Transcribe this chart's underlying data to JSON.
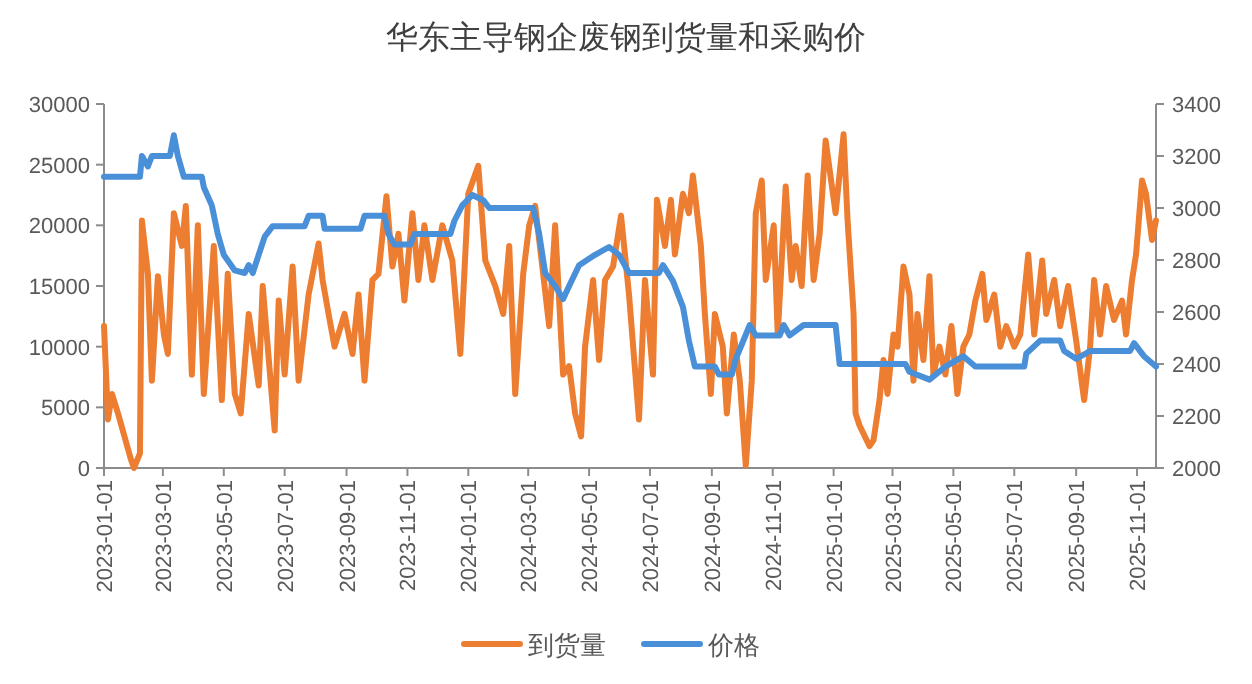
{
  "chart_data": {
    "type": "line",
    "title": "华东主导钢企废钢到货量和采购价",
    "legend": "bottom",
    "xlim": [
      "2023-01-01",
      "2025-11-20"
    ],
    "xticks": [
      "2023-01-01",
      "2023-03-01",
      "2023-05-01",
      "2023-07-01",
      "2023-09-01",
      "2023-11-01",
      "2024-01-01",
      "2024-03-01",
      "2024-05-01",
      "2024-07-01",
      "2024-09-01",
      "2024-11-01",
      "2025-01-01",
      "2025-03-01",
      "2025-05-01",
      "2025-07-01",
      "2025-09-01",
      "2025-11-01"
    ],
    "ylim": [
      0,
      30000
    ],
    "yticks": [
      0,
      5000,
      10000,
      15000,
      20000,
      25000,
      30000
    ],
    "y2lim": [
      2000,
      3400
    ],
    "y2ticks": [
      2000,
      2200,
      2400,
      2600,
      2800,
      3000,
      3200,
      3400
    ],
    "series": [
      {
        "name": "到货量",
        "color": "#ed7d31",
        "axis": "y",
        "x": [
          "2023-01-01",
          "2023-01-05",
          "2023-01-09",
          "2023-01-15",
          "2023-01-28",
          "2023-01-31",
          "2023-02-06",
          "2023-02-08",
          "2023-02-14",
          "2023-02-18",
          "2023-02-24",
          "2023-03-02",
          "2023-03-06",
          "2023-03-12",
          "2023-03-20",
          "2023-03-24",
          "2023-03-30",
          "2023-04-05",
          "2023-04-11",
          "2023-04-21",
          "2023-04-29",
          "2023-05-05",
          "2023-05-12",
          "2023-05-18",
          "2023-05-26",
          "2023-06-05",
          "2023-06-09",
          "2023-06-21",
          "2023-06-25",
          "2023-07-01",
          "2023-07-09",
          "2023-07-15",
          "2023-07-25",
          "2023-08-04",
          "2023-08-08",
          "2023-08-14",
          "2023-08-20",
          "2023-08-30",
          "2023-09-07",
          "2023-09-13",
          "2023-09-19",
          "2023-09-27",
          "2023-10-03",
          "2023-10-11",
          "2023-10-17",
          "2023-10-23",
          "2023-10-29",
          "2023-11-06",
          "2023-11-12",
          "2023-11-18",
          "2023-11-26",
          "2023-12-06",
          "2023-12-16",
          "2023-12-24",
          "2024-01-01",
          "2024-01-11",
          "2024-01-18",
          "2024-01-28",
          "2024-02-05",
          "2024-02-11",
          "2024-02-17",
          "2024-02-25",
          "2024-03-02",
          "2024-03-08",
          "2024-03-16",
          "2024-03-22",
          "2024-03-28",
          "2024-04-05",
          "2024-04-11",
          "2024-04-17",
          "2024-04-23",
          "2024-04-27",
          "2024-05-05",
          "2024-05-11",
          "2024-05-17",
          "2024-05-25",
          "2024-06-02",
          "2024-06-10",
          "2024-06-20",
          "2024-06-26",
          "2024-07-04",
          "2024-07-08",
          "2024-07-16",
          "2024-07-22",
          "2024-07-26",
          "2024-08-03",
          "2024-08-09",
          "2024-08-13",
          "2024-08-21",
          "2024-08-25",
          "2024-08-31",
          "2024-09-04",
          "2024-09-12",
          "2024-09-16",
          "2024-09-23",
          "2024-09-29",
          "2024-10-05",
          "2024-10-11",
          "2024-10-15",
          "2024-10-21",
          "2024-10-25",
          "2024-11-02",
          "2024-11-06",
          "2024-11-14",
          "2024-11-20",
          "2024-11-24",
          "2024-11-30",
          "2024-12-06",
          "2024-12-12",
          "2024-12-18",
          "2024-12-24",
          "2025-01-03",
          "2025-01-11",
          "2025-01-15",
          "2025-01-21",
          "2025-01-23",
          "2025-01-27",
          "2025-02-06",
          "2025-02-10",
          "2025-02-16",
          "2025-02-20",
          "2025-02-24",
          "2025-03-02",
          "2025-03-06",
          "2025-03-12",
          "2025-03-18",
          "2025-03-22",
          "2025-03-26",
          "2025-04-01",
          "2025-04-07",
          "2025-04-11",
          "2025-04-17",
          "2025-04-23",
          "2025-04-29",
          "2025-05-05",
          "2025-05-11",
          "2025-05-17",
          "2025-05-23",
          "2025-05-30",
          "2025-06-03",
          "2025-06-11",
          "2025-06-17",
          "2025-06-23",
          "2025-07-01",
          "2025-07-07",
          "2025-07-15",
          "2025-07-21",
          "2025-07-29",
          "2025-08-02",
          "2025-08-10",
          "2025-08-16",
          "2025-08-24",
          "2025-09-01",
          "2025-09-09",
          "2025-09-15",
          "2025-09-19",
          "2025-09-25",
          "2025-10-01",
          "2025-10-09",
          "2025-10-17",
          "2025-10-21",
          "2025-10-27",
          "2025-10-31",
          "2025-11-06",
          "2025-11-10",
          "2025-11-16",
          "2025-11-20"
        ],
        "values": [
          11700,
          4000,
          6100,
          4500,
          700,
          0,
          1200,
          20400,
          16000,
          7200,
          15800,
          11000,
          9400,
          21000,
          18300,
          21600,
          7700,
          20000,
          6100,
          18300,
          5600,
          16000,
          6100,
          4500,
          12700,
          6800,
          15000,
          3100,
          13800,
          7700,
          16600,
          7200,
          14300,
          18500,
          15500,
          12700,
          10000,
          12700,
          9400,
          14300,
          7200,
          15500,
          16000,
          22400,
          16600,
          19300,
          13800,
          21000,
          15500,
          20000,
          15500,
          20000,
          17100,
          9400,
          22600,
          24900,
          17100,
          15000,
          12700,
          18300,
          6100,
          16000,
          20000,
          21600,
          16000,
          11700,
          20000,
          7700,
          8400,
          4500,
          2600,
          10000,
          15500,
          8900,
          15500,
          16600,
          20800,
          14300,
          4000,
          15500,
          7700,
          22100,
          18300,
          22100,
          17600,
          22600,
          21000,
          24100,
          18300,
          12700,
          6100,
          12700,
          10000,
          4500,
          11000,
          7200,
          200,
          7200,
          21000,
          23700,
          15500,
          20000,
          11000,
          23200,
          15500,
          18300,
          15000,
          24100,
          15500,
          19300,
          27000,
          21000,
          27500,
          20400,
          12700,
          4500,
          3500,
          1800,
          2300,
          5600,
          8900,
          6100,
          11000,
          10000,
          16600,
          14300,
          7200,
          12700,
          8900,
          15800,
          7700,
          10000,
          7700,
          11700,
          6100,
          10000,
          11000,
          13800,
          16000,
          12200,
          14300,
          10000,
          11700,
          10000,
          11000,
          17600,
          11000,
          17100,
          12700,
          15500,
          11700,
          15000,
          10500,
          5600,
          10000,
          15500,
          11000,
          15000,
          12200,
          13800,
          11000,
          15500,
          17600,
          23700,
          22600,
          18800,
          20400
        ]
      },
      {
        "name": "价格",
        "color": "#4a90d9",
        "axis": "y2",
        "x": [
          "2023-01-01",
          "2023-02-06",
          "2023-02-08",
          "2023-02-14",
          "2023-02-18",
          "2023-03-08",
          "2023-03-12",
          "2023-03-16",
          "2023-03-22",
          "2023-04-09",
          "2023-04-11",
          "2023-04-19",
          "2023-04-25",
          "2023-05-01",
          "2023-05-12",
          "2023-05-22",
          "2023-05-26",
          "2023-05-30",
          "2023-06-05",
          "2023-06-11",
          "2023-06-19",
          "2023-07-21",
          "2023-07-25",
          "2023-08-08",
          "2023-08-10",
          "2023-09-15",
          "2023-09-19",
          "2023-10-09",
          "2023-10-13",
          "2023-10-19",
          "2023-11-04",
          "2023-11-08",
          "2023-12-14",
          "2023-12-18",
          "2023-12-26",
          "2024-01-05",
          "2024-01-16",
          "2024-01-22",
          "2024-03-06",
          "2024-03-12",
          "2024-03-18",
          "2024-03-28",
          "2024-04-05",
          "2024-04-11",
          "2024-04-21",
          "2024-05-07",
          "2024-05-21",
          "2024-05-31",
          "2024-06-10",
          "2024-07-10",
          "2024-07-14",
          "2024-07-24",
          "2024-08-03",
          "2024-08-09",
          "2024-08-15",
          "2024-09-04",
          "2024-09-08",
          "2024-09-21",
          "2024-09-25",
          "2024-10-09",
          "2024-10-15",
          "2024-11-08",
          "2024-11-12",
          "2024-11-18",
          "2024-12-02",
          "2025-01-03",
          "2025-01-07",
          "2025-03-14",
          "2025-03-18",
          "2025-04-07",
          "2025-04-23",
          "2025-05-11",
          "2025-05-23",
          "2025-07-11",
          "2025-07-13",
          "2025-07-27",
          "2025-08-16",
          "2025-08-20",
          "2025-09-01",
          "2025-09-15",
          "2025-10-25",
          "2025-10-29",
          "2025-11-08",
          "2025-11-20"
        ],
        "values": [
          3120,
          3120,
          3200,
          3160,
          3200,
          3200,
          3280,
          3200,
          3120,
          3120,
          3080,
          3010,
          2900,
          2820,
          2760,
          2750,
          2780,
          2750,
          2820,
          2890,
          2930,
          2930,
          2970,
          2970,
          2920,
          2920,
          2970,
          2970,
          2900,
          2860,
          2860,
          2900,
          2900,
          2950,
          3010,
          3050,
          3030,
          3000,
          3000,
          2900,
          2750,
          2700,
          2650,
          2700,
          2780,
          2820,
          2850,
          2820,
          2750,
          2750,
          2780,
          2720,
          2620,
          2490,
          2390,
          2390,
          2360,
          2360,
          2420,
          2550,
          2510,
          2510,
          2550,
          2510,
          2550,
          2550,
          2400,
          2400,
          2370,
          2340,
          2390,
          2430,
          2390,
          2390,
          2440,
          2490,
          2490,
          2450,
          2420,
          2450,
          2450,
          2480,
          2430,
          2390
        ]
      }
    ]
  }
}
